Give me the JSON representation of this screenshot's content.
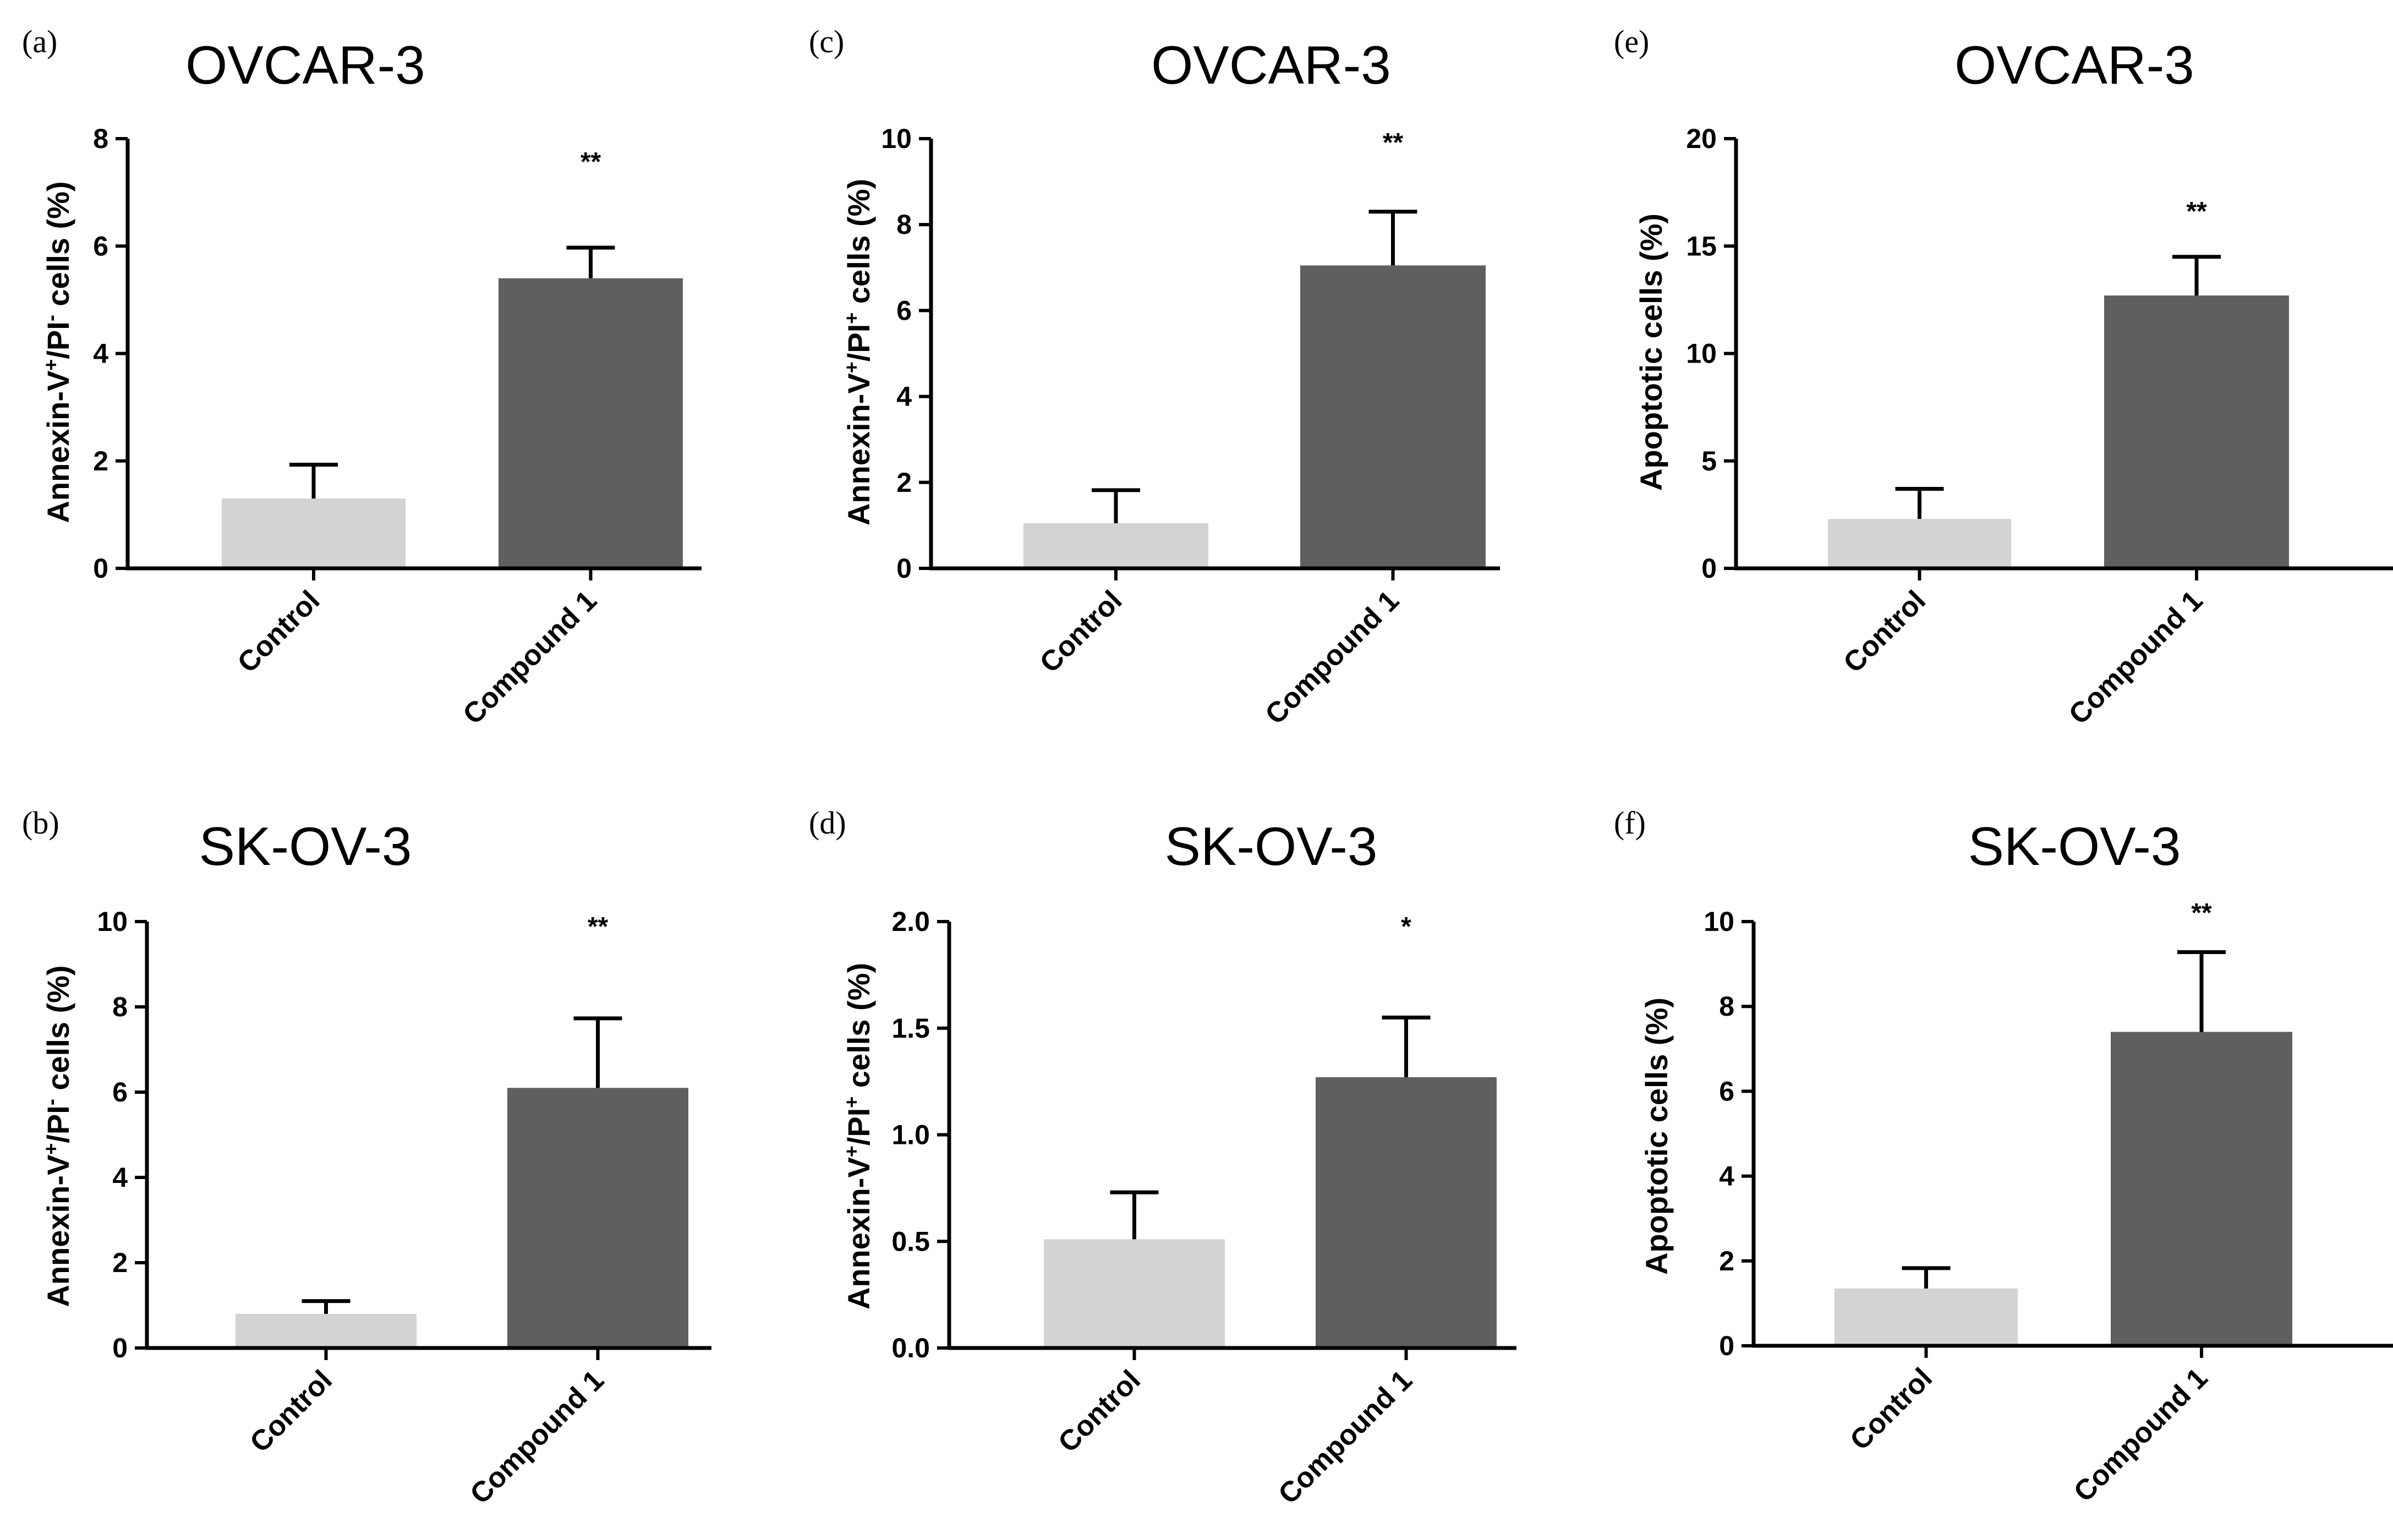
{
  "chart_data": [
    {
      "panel": "(a)",
      "type": "bar",
      "title": "OVCAR-3",
      "ylabel": {
        "prefix": "Annexin-V",
        "sup1": "+",
        "mid": "/PI",
        "sup2": "-",
        "suffix": " cells (%)"
      },
      "xlabel": "",
      "categories": [
        "Control",
        "Compound 1"
      ],
      "values": [
        1.3,
        5.4
      ],
      "errors": [
        0.63,
        0.57
      ],
      "colors": [
        "#d3d3d3",
        "#5f5f5f"
      ],
      "significance": [
        "",
        "**"
      ],
      "ylim": [
        0,
        8
      ],
      "yticks": [
        0,
        2,
        4,
        6,
        8
      ],
      "ytick_labels": [
        "0",
        "2",
        "4",
        "6",
        "8"
      ]
    },
    {
      "panel": "(b)",
      "type": "bar",
      "title": "SK-OV-3",
      "ylabel": {
        "prefix": "Annexin-V",
        "sup1": "+",
        "mid": "/PI",
        "sup2": "-",
        "suffix": " cells (%)"
      },
      "xlabel": "",
      "categories": [
        "Control",
        "Compound 1"
      ],
      "values": [
        0.8,
        6.1
      ],
      "errors": [
        0.3,
        1.63
      ],
      "colors": [
        "#d3d3d3",
        "#5f5f5f"
      ],
      "significance": [
        "",
        "**"
      ],
      "ylim": [
        0,
        10
      ],
      "yticks": [
        0,
        2,
        4,
        6,
        8,
        10
      ],
      "ytick_labels": [
        "0",
        "2",
        "4",
        "6",
        "8",
        "10"
      ]
    },
    {
      "panel": "(c)",
      "type": "bar",
      "title": "OVCAR-3",
      "ylabel": {
        "prefix": "Annexin-V",
        "sup1": "+",
        "mid": "/PI",
        "sup2": "+",
        "suffix": " cells (%)"
      },
      "xlabel": "",
      "categories": [
        "Control",
        "Compound 1"
      ],
      "values": [
        1.05,
        7.05
      ],
      "errors": [
        0.77,
        1.25
      ],
      "colors": [
        "#d3d3d3",
        "#5f5f5f"
      ],
      "significance": [
        "",
        "**"
      ],
      "ylim": [
        0,
        10
      ],
      "yticks": [
        0,
        2,
        4,
        6,
        8,
        10
      ],
      "ytick_labels": [
        "0",
        "2",
        "4",
        "6",
        "8",
        "10"
      ]
    },
    {
      "panel": "(d)",
      "type": "bar",
      "title": "SK-OV-3",
      "ylabel": {
        "prefix": "Annexin-V",
        "sup1": "+",
        "mid": "/PI",
        "sup2": "+",
        "suffix": " cells (%)"
      },
      "xlabel": "",
      "categories": [
        "Control",
        "Compound 1"
      ],
      "values": [
        0.51,
        1.27
      ],
      "errors": [
        0.22,
        0.28
      ],
      "colors": [
        "#d3d3d3",
        "#5f5f5f"
      ],
      "significance": [
        "",
        "*"
      ],
      "ylim": [
        0,
        2
      ],
      "yticks": [
        0,
        0.5,
        1,
        1.5,
        2
      ],
      "ytick_labels": [
        "0.0",
        "0.5",
        "1.0",
        "1.5",
        "2.0"
      ]
    },
    {
      "panel": "(e)",
      "type": "bar",
      "title": "OVCAR-3",
      "ylabel": {
        "prefix": "Apoptotic cells (%)",
        "sup1": "",
        "mid": "",
        "sup2": "",
        "suffix": ""
      },
      "xlabel": "",
      "categories": [
        "Control",
        "Compound 1"
      ],
      "values": [
        2.3,
        12.7
      ],
      "errors": [
        1.4,
        1.8
      ],
      "colors": [
        "#d3d3d3",
        "#5f5f5f"
      ],
      "significance": [
        "",
        "**"
      ],
      "ylim": [
        0,
        20
      ],
      "yticks": [
        0,
        5,
        10,
        15,
        20
      ],
      "ytick_labels": [
        "0",
        "5",
        "10",
        "15",
        "20"
      ]
    },
    {
      "panel": "(f)",
      "type": "bar",
      "title": "SK-OV-3",
      "ylabel": {
        "prefix": "Apoptotic cells (%)",
        "sup1": "",
        "mid": "",
        "sup2": "",
        "suffix": ""
      },
      "xlabel": "",
      "categories": [
        "Control",
        "Compound 1"
      ],
      "values": [
        1.35,
        7.4
      ],
      "errors": [
        0.48,
        1.88
      ],
      "colors": [
        "#d3d3d3",
        "#5f5f5f"
      ],
      "significance": [
        "",
        "**"
      ],
      "ylim": [
        0,
        10
      ],
      "yticks": [
        0,
        2,
        4,
        6,
        8,
        10
      ],
      "ytick_labels": [
        "0",
        "2",
        "4",
        "6",
        "8",
        "10"
      ]
    }
  ]
}
